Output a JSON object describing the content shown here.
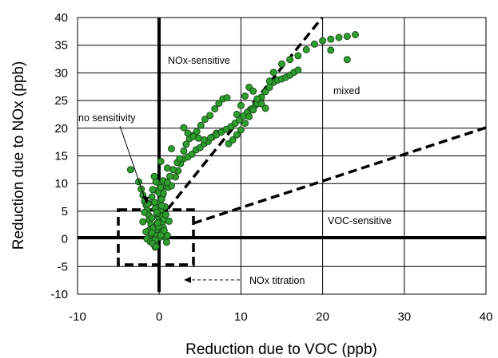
{
  "chart_data": {
    "type": "scatter",
    "title": "",
    "xlabel": "Reduction due to VOC (ppb)",
    "ylabel": "Reduction due to NOx (ppb)",
    "xlim": [
      -10,
      40
    ],
    "ylim": [
      -10,
      40
    ],
    "x_ticks": [
      "-10",
      "0",
      "10",
      "20",
      "30",
      "40"
    ],
    "y_ticks": [
      "-10",
      "-5",
      "0",
      "5",
      "10",
      "15",
      "20",
      "25",
      "30",
      "35",
      "40"
    ],
    "grid": true,
    "marker_color": "#2e9e2e",
    "marker_edge": "#1a4d1a",
    "regions": {
      "nox_sensitive": "NOx-sensitive",
      "mixed": "mixed",
      "no_sensitivity": "no sensitivity",
      "voc_sensitive": "VOC-sensitive",
      "nox_titration": "NOx titration"
    },
    "series": [
      {
        "x": [
          -3.5,
          -2.5,
          -2.2,
          -2,
          -1.8,
          -1.6,
          -1.5,
          -1.3,
          -1.2,
          -1,
          -1,
          -0.9,
          -0.8,
          -0.8,
          -0.7,
          -0.6,
          -0.5,
          -0.5,
          -0.4,
          -0.3,
          -0.3,
          -0.2,
          -0.1,
          0,
          0,
          0.1,
          0.2,
          0.3,
          0.4,
          0.5,
          0.6,
          0.8,
          1,
          -1.5,
          -1.2,
          -0.9,
          -0.6,
          -0.3,
          0.1,
          0.4,
          0.7,
          -2,
          -1.6,
          -1.1,
          -0.7,
          -0.2,
          0.3,
          0.6,
          -1.8,
          -1.3,
          -0.8,
          -0.4,
          0,
          0.5,
          0.9,
          -1,
          -0.5,
          0.2,
          0.8,
          -0.6,
          0.1,
          -1.4,
          -0.9,
          -0.2,
          0.4,
          -0.5,
          0.2,
          -0.9,
          -0.3,
          1.2,
          1.5,
          -0.5,
          -0.1,
          0.3,
          -0.8,
          0.9,
          0.2,
          -0.2,
          0.6,
          1.1,
          -0.4,
          1,
          0.5,
          0.5,
          1.5,
          2,
          2.3,
          2.6,
          3,
          3.5,
          4,
          4.5,
          5,
          5.5,
          6,
          6.5,
          7,
          1,
          1.3,
          1.7,
          2.2,
          2.5,
          3,
          3.3,
          3.7,
          4.2,
          4.6,
          5.1,
          5.6,
          6.2,
          6.8,
          7.3,
          7.8,
          8.3,
          3,
          3.5,
          4.2,
          4.8,
          5.5,
          6.3,
          7,
          7.6,
          8.2,
          8.8,
          9.3,
          9.8,
          10.3,
          10.8,
          11.3,
          11.8,
          12.3,
          8.5,
          9,
          9.5,
          10,
          10.5,
          11,
          11.5,
          12,
          12.5,
          13,
          13.5,
          14,
          14.5,
          15,
          15.5,
          16,
          16.5,
          17,
          9.5,
          10,
          10.5,
          11,
          11.5,
          12,
          12.5,
          13,
          13.5,
          14,
          15,
          16,
          17,
          18,
          19,
          20,
          21,
          22,
          23,
          24,
          21,
          23
        ],
        "y": [
          12.5,
          10.3,
          9,
          7.9,
          6.8,
          6.1,
          5.2,
          4.3,
          3.4,
          2.6,
          1.8,
          1,
          0.5,
          -0.1,
          -0.6,
          -1.1,
          -1.5,
          -0.9,
          0.1,
          0.8,
          1.7,
          2.9,
          4,
          5.2,
          5.9,
          6.7,
          5.1,
          4.2,
          3,
          2,
          1,
          0.2,
          0.6,
          0,
          1.6,
          3.8,
          6.6,
          8.7,
          9.8,
          7.9,
          5.8,
          3.1,
          1.3,
          -0.5,
          2,
          4.6,
          7.2,
          3.6,
          4.8,
          6.4,
          8.9,
          10.3,
          8.3,
          1.5,
          -0.6,
          0.9,
          5.5,
          9.3,
          4.4,
          11.3,
          0.3,
          6.3,
          7.6,
          2.4,
          1.2,
          -1,
          0.7,
          1.1,
          4.8,
          3.2,
          16.3,
          -0.2,
          2.2,
          6,
          -0.8,
          9.4,
          14,
          2.9,
          1.5,
          9.3,
          -1.4,
          12.8,
          10.5,
          8.2,
          9.6,
          11.2,
          12.3,
          13.6,
          14.5,
          14.8,
          15.3,
          16.1,
          16.5,
          17.2,
          17.6,
          18.4,
          19.1,
          10.2,
          11.3,
          12.5,
          13.8,
          14.5,
          15.9,
          17.1,
          18.1,
          18.7,
          19.4,
          20.5,
          21.6,
          22.3,
          23.5,
          24.5,
          25.3,
          25.5,
          20.1,
          19.1,
          18.5,
          18.2,
          17.9,
          18.3,
          18.8,
          19.3,
          19.8,
          20.3,
          20.9,
          21.5,
          22.2,
          22.9,
          23.5,
          24.2,
          25.1,
          17.2,
          17.9,
          18.8,
          19.7,
          20.9,
          22.1,
          23.3,
          24.5,
          25.6,
          26.6,
          27.4,
          28.3,
          28.7,
          28.9,
          29.2,
          29.6,
          30.1,
          30.5,
          22.5,
          24.1,
          25.8,
          27.4,
          26.7,
          25.3,
          24.4,
          23.6,
          28.5,
          30.1,
          31.6,
          32.4,
          33.1,
          34.2,
          35.2,
          35.8,
          36.1,
          36.4,
          36.6,
          36.9,
          34.1,
          32.4
        ]
      }
    ]
  }
}
